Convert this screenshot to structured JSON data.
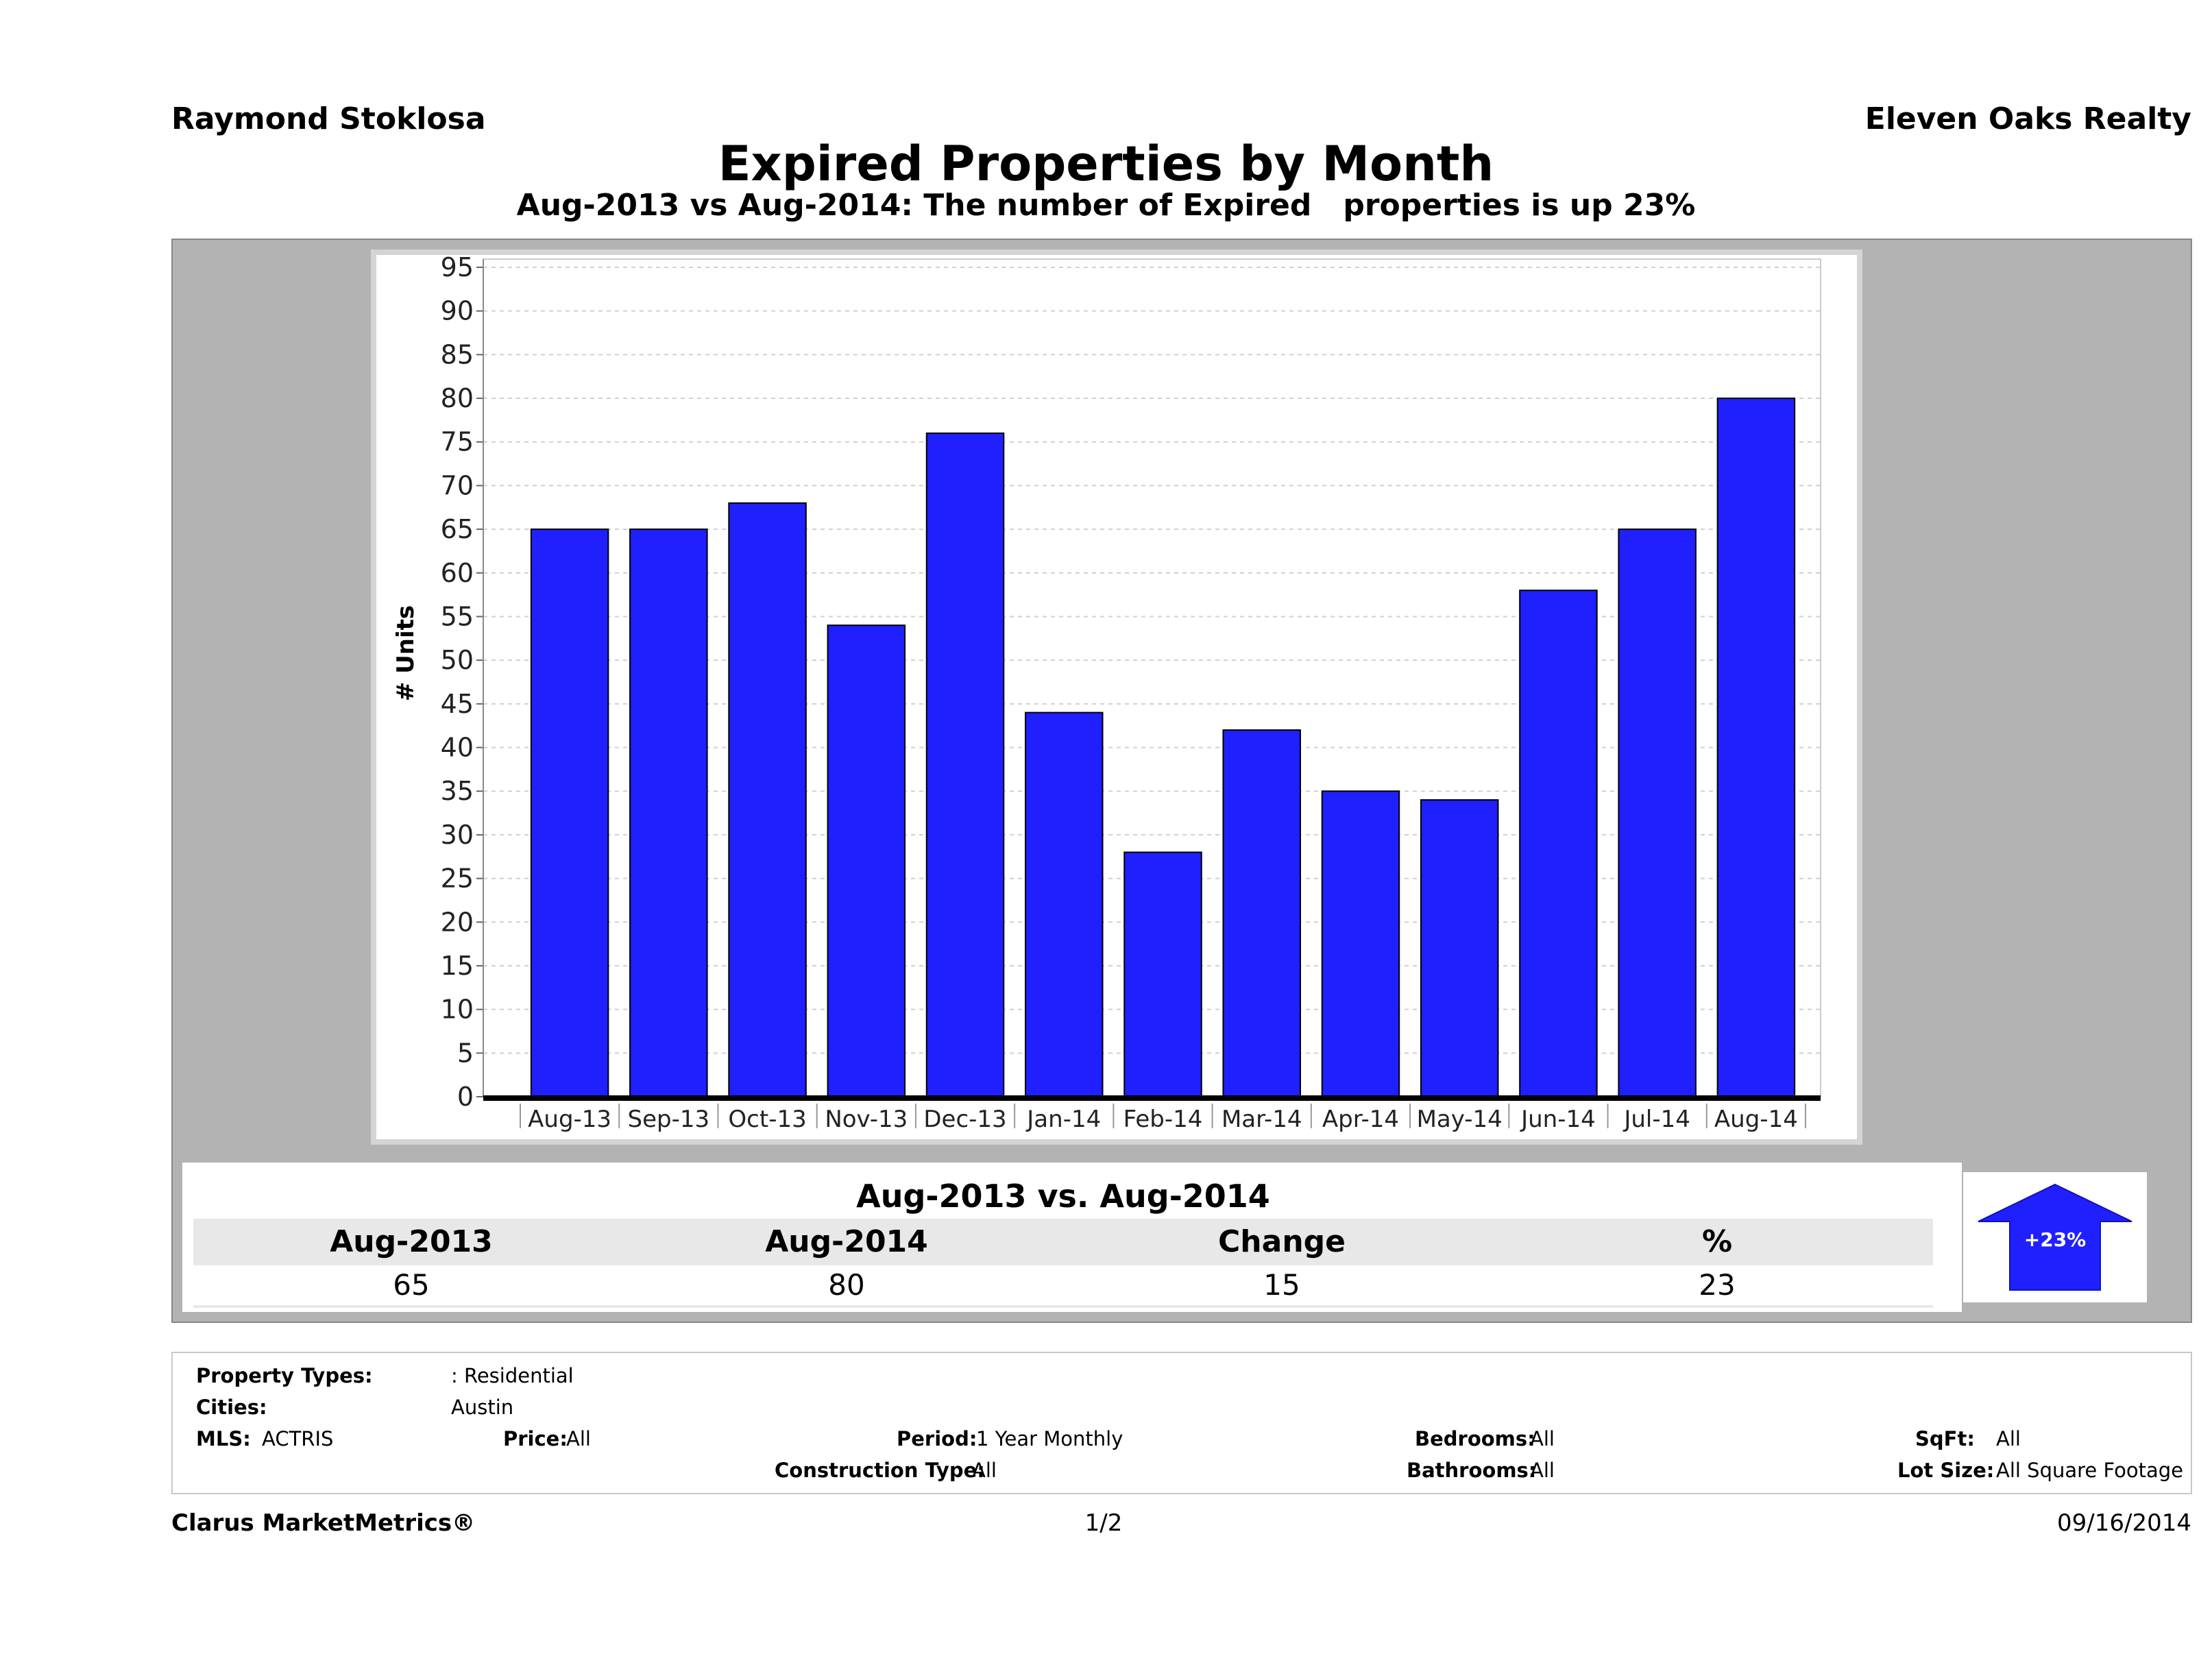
{
  "header": {
    "agent": "Raymond Stoklosa",
    "brokerage": "Eleven Oaks Realty",
    "title": "Expired Properties by Month",
    "subtitle": "Aug-2013 vs Aug-2014: The number of Expired   properties is up 23%"
  },
  "chart_data": {
    "type": "bar",
    "categories": [
      "Aug-13",
      "Sep-13",
      "Oct-13",
      "Nov-13",
      "Dec-13",
      "Jan-14",
      "Feb-14",
      "Mar-14",
      "Apr-14",
      "May-14",
      "Jun-14",
      "Jul-14",
      "Aug-14"
    ],
    "values": [
      65,
      65,
      68,
      54,
      76,
      44,
      28,
      42,
      35,
      34,
      58,
      65,
      80
    ],
    "ylabel": "# Units",
    "ylim": [
      0,
      95
    ],
    "yticks": [
      0,
      5,
      10,
      15,
      20,
      25,
      30,
      35,
      40,
      45,
      50,
      55,
      60,
      65,
      70,
      75,
      80,
      85,
      90,
      95
    ],
    "grid": true,
    "bar_color": "#2020ff"
  },
  "summary": {
    "title": "Aug-2013 vs. Aug-2014",
    "headers": [
      "Aug-2013",
      "Aug-2014",
      "Change",
      "%"
    ],
    "values": [
      "65",
      "80",
      "15",
      "23"
    ],
    "badge": "+23%",
    "badge_icon": "up-arrow-icon"
  },
  "filters": {
    "property_types_label": "Property Types:",
    "property_types_value": ": Residential",
    "cities_label": "Cities:",
    "cities_value": "Austin",
    "mls_label": "MLS:",
    "mls_value": "ACTRIS",
    "price_label": "Price:",
    "price_value": "All",
    "period_label": "Period:",
    "period_value": "1 Year Monthly",
    "construction_label": "Construction Type:",
    "construction_value": "All",
    "bedrooms_label": "Bedrooms:",
    "bedrooms_value": "All",
    "bathrooms_label": "Bathrooms:",
    "bathrooms_value": "All",
    "sqft_label": "SqFt:",
    "sqft_value": "All",
    "lotsize_label": "Lot Size:",
    "lotsize_value": "All Square Footage"
  },
  "footer": {
    "brand": "Clarus MarketMetrics®",
    "page": "1/2",
    "date": "09/16/2014"
  }
}
